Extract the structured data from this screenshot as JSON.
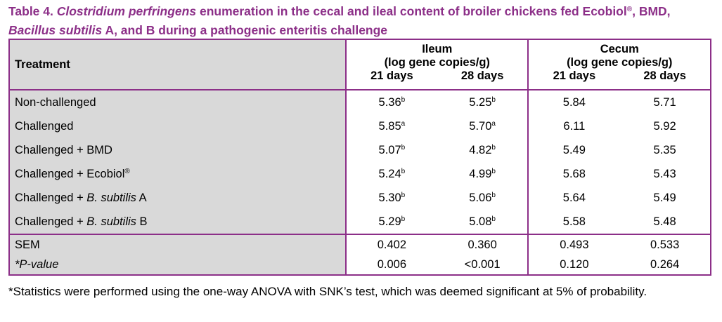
{
  "title": [
    {
      "text": "Table 4. "
    },
    {
      "text": "Clostridium perfringens",
      "italic": true
    },
    {
      "text": " enumeration in the cecal and ileal content of broiler chickens fed Ecobiol"
    },
    {
      "text": "®",
      "sup": true
    },
    {
      "text": ", BMD, "
    },
    {
      "text": "Bacillus subtilis",
      "italic": true
    },
    {
      "text": " A, and B during a pathogenic enteritis challenge"
    }
  ],
  "header": {
    "treatment": "Treatment",
    "groups": [
      {
        "name": "Ileum",
        "unit": "(log gene copies/g)",
        "days": [
          "21 days",
          "28 days"
        ]
      },
      {
        "name": "Cecum",
        "unit": "(log gene copies/g)",
        "days": [
          "21 days",
          "28 days"
        ]
      }
    ]
  },
  "rows": [
    {
      "treatment": [
        {
          "text": "Non-challenged"
        }
      ],
      "values": [
        {
          "value": "5.36",
          "sup": "b"
        },
        {
          "value": "5.25",
          "sup": "b"
        },
        {
          "value": "5.84"
        },
        {
          "value": "5.71"
        }
      ]
    },
    {
      "treatment": [
        {
          "text": "Challenged"
        }
      ],
      "values": [
        {
          "value": "5.85",
          "sup": "a"
        },
        {
          "value": "5.70",
          "sup": "a"
        },
        {
          "value": "6.11"
        },
        {
          "value": "5.92"
        }
      ]
    },
    {
      "treatment": [
        {
          "text": "Challenged + BMD"
        }
      ],
      "values": [
        {
          "value": "5.07",
          "sup": "b"
        },
        {
          "value": "4.82",
          "sup": "b"
        },
        {
          "value": "5.49"
        },
        {
          "value": "5.35"
        }
      ]
    },
    {
      "treatment": [
        {
          "text": "Challenged + Ecobiol"
        },
        {
          "text": "®",
          "sup": true
        }
      ],
      "values": [
        {
          "value": "5.24",
          "sup": "b"
        },
        {
          "value": "4.99",
          "sup": "b"
        },
        {
          "value": "5.68"
        },
        {
          "value": "5.43"
        }
      ]
    },
    {
      "treatment": [
        {
          "text": "Challenged + "
        },
        {
          "text": "B. subtilis",
          "italic": true
        },
        {
          "text": " A"
        }
      ],
      "values": [
        {
          "value": "5.30",
          "sup": "b"
        },
        {
          "value": "5.06",
          "sup": "b"
        },
        {
          "value": "5.64"
        },
        {
          "value": "5.49"
        }
      ]
    },
    {
      "treatment": [
        {
          "text": "Challenged + "
        },
        {
          "text": "B. subtilis",
          "italic": true
        },
        {
          "text": " B"
        }
      ],
      "values": [
        {
          "value": "5.29",
          "sup": "b"
        },
        {
          "value": "5.08",
          "sup": "b"
        },
        {
          "value": "5.58"
        },
        {
          "value": "5.48"
        }
      ]
    }
  ],
  "summary": [
    {
      "label": [
        {
          "text": "SEM"
        }
      ],
      "values": [
        "0.402",
        "0.360",
        "0.493",
        "0.533"
      ]
    },
    {
      "label": [
        {
          "text": "*P-value",
          "italic": true
        }
      ],
      "values": [
        "0.006",
        "<0.001",
        "0.120",
        "0.264"
      ]
    }
  ],
  "footnote": "*Statistics were performed using the one-way ANOVA with SNK’s test, which was deemed significant at 5% of probability."
}
